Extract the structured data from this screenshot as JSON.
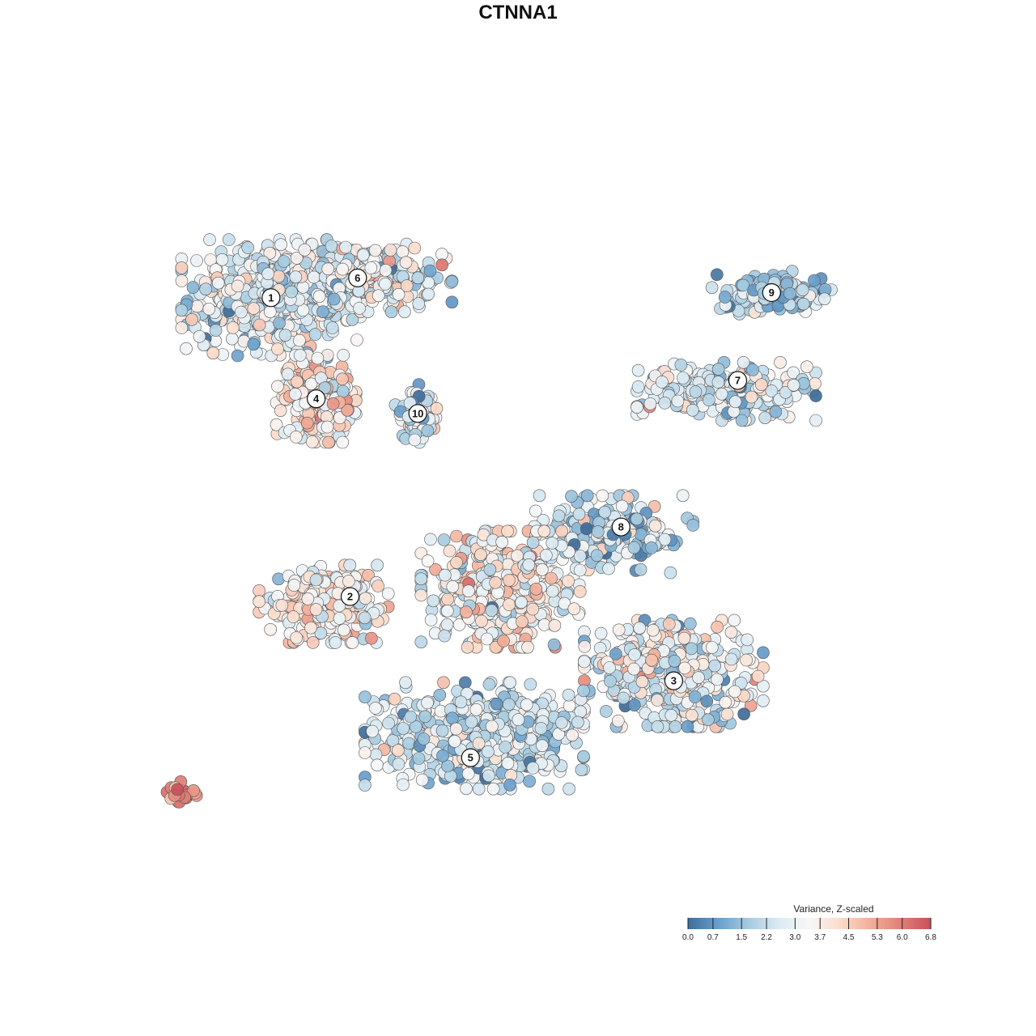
{
  "chart_data": {
    "type": "scatter",
    "title": "CTNNA1",
    "xlabel": "",
    "ylabel": "",
    "xlim": [
      0,
      100
    ],
    "ylim": [
      0,
      100
    ],
    "grid": false,
    "legend": {
      "title": "Variance, Z-scaled",
      "placement": "bottom-right",
      "min": 0.0,
      "max": 6.8,
      "ticks": [
        "0.0",
        "0.7",
        "1.5",
        "2.2",
        "3.0",
        "3.7",
        "4.5",
        "5.3",
        "6.0",
        "6.8"
      ],
      "colors": [
        "#3f6d9a",
        "#6aa0cc",
        "#a6cbe0",
        "#dcebf3",
        "#f7f7f7",
        "#fbdccb",
        "#f2b09a",
        "#e08078",
        "#c9505a"
      ]
    },
    "clusters": [
      {
        "label": "1",
        "x": 14.5,
        "y": 79.8,
        "sx": 9.0,
        "sy": 6.0,
        "n": 520,
        "mean": 2.8,
        "sd": 0.9
      },
      {
        "label": "6",
        "x": 26.0,
        "y": 82.5,
        "sx": 9.5,
        "sy": 3.5,
        "n": 440,
        "mean": 2.9,
        "sd": 1.0
      },
      {
        "label": "4",
        "x": 20.5,
        "y": 66.0,
        "sx": 4.0,
        "sy": 4.5,
        "n": 230,
        "mean": 3.8,
        "sd": 1.0
      },
      {
        "label": "10",
        "x": 34.0,
        "y": 64.0,
        "sx": 2.5,
        "sy": 3.0,
        "n": 70,
        "mean": 2.5,
        "sd": 1.0
      },
      {
        "label": "9",
        "x": 81.0,
        "y": 80.5,
        "sx": 6.0,
        "sy": 2.2,
        "n": 150,
        "mean": 1.7,
        "sd": 0.8
      },
      {
        "label": "7",
        "x": 75.0,
        "y": 67.0,
        "sx": 9.0,
        "sy": 3.0,
        "n": 260,
        "mean": 2.6,
        "sd": 0.9
      },
      {
        "label": "8",
        "x": 60.0,
        "y": 47.5,
        "sx": 8.0,
        "sy": 4.0,
        "n": 210,
        "mean": 2.2,
        "sd": 1.2
      },
      {
        "label": "2",
        "x": 21.5,
        "y": 38.0,
        "sx": 6.5,
        "sy": 4.0,
        "n": 250,
        "mean": 3.5,
        "sd": 0.9
      },
      {
        "label": "3",
        "x": 68.0,
        "y": 28.5,
        "sx": 9.0,
        "sy": 5.5,
        "n": 420,
        "mean": 2.8,
        "sd": 1.1
      },
      {
        "label": "5",
        "x": 41.5,
        "y": 20.0,
        "sx": 11.0,
        "sy": 5.5,
        "n": 560,
        "mean": 2.5,
        "sd": 0.9
      },
      {
        "label": "",
        "x": 45.0,
        "y": 40.0,
        "sx": 8.0,
        "sy": 6.0,
        "n": 420,
        "mean": 3.5,
        "sd": 1.0
      },
      {
        "label": "",
        "x": 2.8,
        "y": 12.5,
        "sx": 1.6,
        "sy": 1.4,
        "n": 22,
        "mean": 5.9,
        "sd": 0.7
      }
    ],
    "cluster_labels": [
      {
        "label": "1",
        "x": 14.5,
        "y": 79.8
      },
      {
        "label": "6",
        "x": 26.0,
        "y": 82.5
      },
      {
        "label": "4",
        "x": 20.5,
        "y": 66.0
      },
      {
        "label": "10",
        "x": 34.0,
        "y": 64.0
      },
      {
        "label": "9",
        "x": 81.0,
        "y": 80.5
      },
      {
        "label": "7",
        "x": 76.5,
        "y": 68.5
      },
      {
        "label": "8",
        "x": 61.0,
        "y": 48.5
      },
      {
        "label": "2",
        "x": 25.0,
        "y": 39.0
      },
      {
        "label": "3",
        "x": 68.0,
        "y": 27.5
      },
      {
        "label": "5",
        "x": 41.0,
        "y": 17.0
      }
    ]
  }
}
